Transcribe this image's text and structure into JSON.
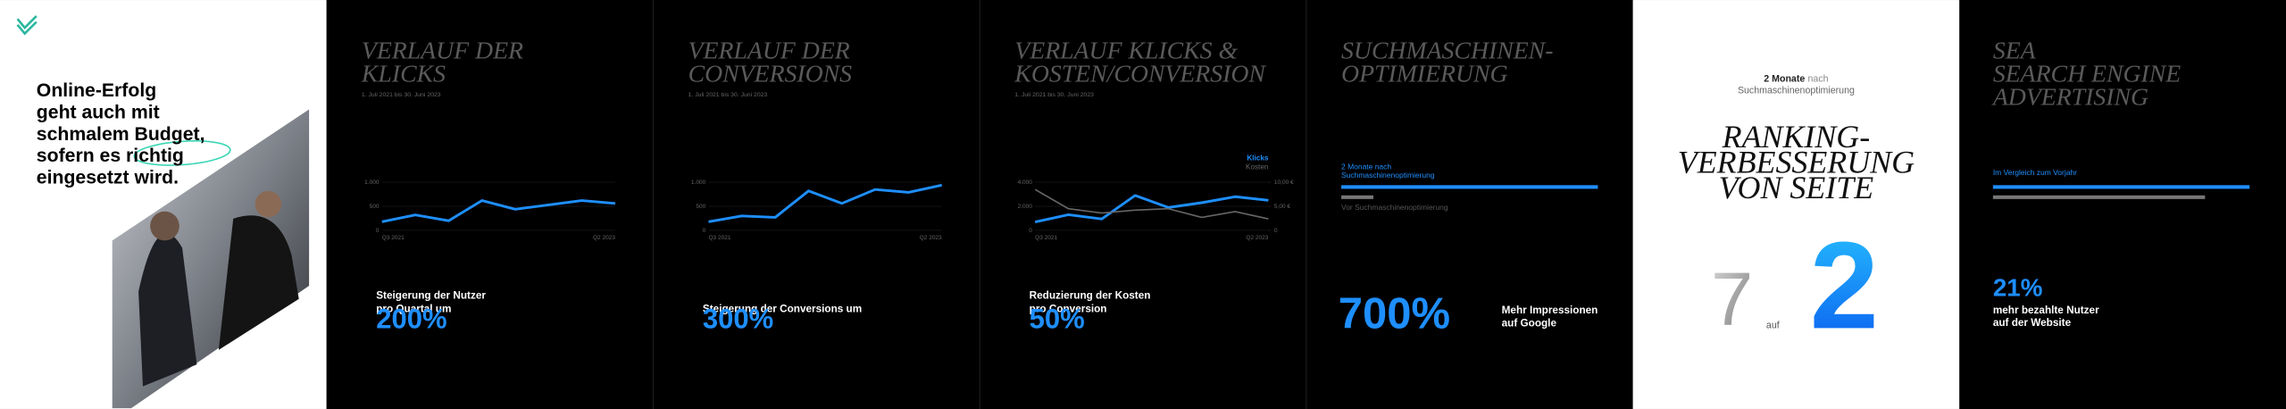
{
  "intro": {
    "headline": [
      "Online-Erfolg",
      "geht auch mit",
      "schmalem Budget,",
      "sofern es richtig",
      "eingesetzt wird."
    ]
  },
  "panels": [
    {
      "title": [
        "VERLAUF DER",
        "KLICKS"
      ],
      "date": "1. Juli 2021 bis 30. Juni 2023",
      "stat_text": [
        "Steigerung der Nutzer",
        "pro Quartal um"
      ],
      "stat_value": "200%"
    },
    {
      "title": [
        "VERLAUF DER",
        "CONVERSIONS"
      ],
      "date": "1. Juli 2021 bis 30. Juni 2023",
      "stat_text": [
        "Steigerung der Conversions um"
      ],
      "stat_value": "300%"
    },
    {
      "title": [
        "VERLAUF KLICKS &",
        "KOSTEN/CONVERSION"
      ],
      "date": "1. Juli 2021 bis 30. Juni 2023",
      "stat_text": [
        "Reduzierung der Kosten",
        "pro Conversion"
      ],
      "stat_value": "50%"
    },
    {
      "title": [
        "SUCHMASCHINEN-",
        "OPTIMIERUNG"
      ],
      "bars": [
        {
          "label": [
            "2 Monate nach",
            "Suchmaschinenoptimierung"
          ],
          "value": 8,
          "color": "#1e8fff"
        },
        {
          "label": [
            "Vor Suchmaschinenoptimierung"
          ],
          "value": 1,
          "color": "#555555"
        }
      ],
      "stat_value": "700%",
      "stat_text": [
        "Mehr Impressionen",
        "auf Google"
      ]
    },
    {
      "caption_bold": "2 Monate",
      "caption_light": "nach",
      "caption_line2": "Suchmaschinenoptimierung",
      "title": [
        "RANKING-",
        "VERBESSERUNG",
        "VON SEITE"
      ],
      "from": "7",
      "between": "auf",
      "to": "2"
    },
    {
      "title": [
        "SEA",
        "SEARCH ENGINE",
        "ADVERTISING"
      ],
      "bar_label": "Im Vergleich zum Vorjahr",
      "bars": [
        {
          "value": 121,
          "color": "#1e8fff"
        },
        {
          "value": 100,
          "color": "#555555"
        }
      ],
      "stat_value": "21%",
      "stat_text": [
        "mehr bezahlte Nutzer",
        "auf der Website"
      ]
    }
  ],
  "chart_data": [
    {
      "type": "line",
      "categories": [
        "Q3 2021",
        null,
        null,
        null,
        null,
        null,
        null,
        "Q2 2023"
      ],
      "series": [
        {
          "color": "#1e8fff",
          "values": [
            180,
            320,
            200,
            620,
            440,
            530,
            620,
            560
          ]
        }
      ],
      "ylim": [
        0,
        1000
      ],
      "yticks": [
        0,
        500,
        {
          "value": 1000,
          "label": "1.000"
        }
      ],
      "grid": true
    },
    {
      "type": "line",
      "categories": [
        "Q3 2021",
        null,
        null,
        null,
        null,
        null,
        null,
        "Q2 2023"
      ],
      "series": [
        {
          "color": "#1e8fff",
          "values": [
            180,
            300,
            270,
            820,
            560,
            850,
            790,
            940
          ]
        }
      ],
      "ylim": [
        0,
        1000
      ],
      "yticks": [
        0,
        500,
        {
          "value": 1000,
          "label": "1.000"
        }
      ],
      "grid": true
    },
    {
      "type": "line",
      "categories": [
        "Q3 2021",
        null,
        null,
        null,
        null,
        null,
        null,
        "Q2 2023"
      ],
      "series": [
        {
          "name": "Klicks",
          "color": "#1e8fff",
          "values": [
            700,
            1300,
            950,
            2900,
            1900,
            2300,
            2800,
            2500
          ]
        },
        {
          "name": "Kosten",
          "color": "#666666",
          "axis": "y2",
          "values": [
            8.5,
            4.5,
            3.6,
            4.2,
            4.5,
            2.7,
            3.9,
            2.4
          ]
        }
      ],
      "ylim": [
        0,
        4000
      ],
      "yticks": [
        0,
        {
          "value": 2000,
          "label": "2.000"
        },
        {
          "value": 4000,
          "label": "4.000"
        }
      ],
      "y2lim": [
        0,
        10
      ],
      "y2ticks": [
        0,
        {
          "value": 5,
          "label": "5,00 €"
        },
        {
          "value": 10,
          "label": "10,00 €"
        }
      ],
      "grid": true
    }
  ]
}
